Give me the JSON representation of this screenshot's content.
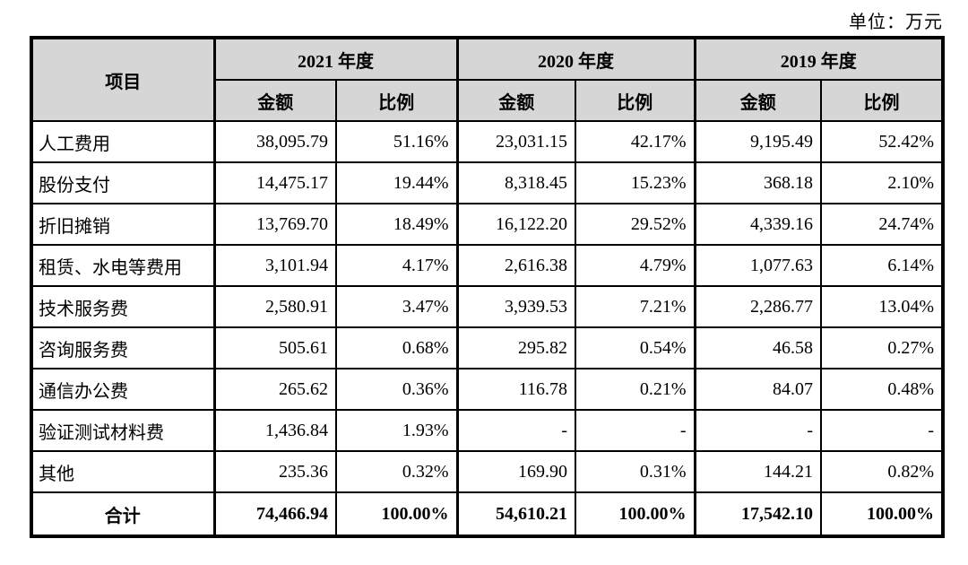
{
  "unit_label": "单位：万元",
  "table": {
    "item_header": "项目",
    "year_groups": [
      {
        "label": "2021 年度",
        "amount_label": "金额",
        "ratio_label": "比例"
      },
      {
        "label": "2020 年度",
        "amount_label": "金额",
        "ratio_label": "比例"
      },
      {
        "label": "2019 年度",
        "amount_label": "金额",
        "ratio_label": "比例"
      }
    ],
    "rows": [
      {
        "item": "人工费用",
        "values": [
          "38,095.79",
          "51.16%",
          "23,031.15",
          "42.17%",
          "9,195.49",
          "52.42%"
        ]
      },
      {
        "item": "股份支付",
        "values": [
          "14,475.17",
          "19.44%",
          "8,318.45",
          "15.23%",
          "368.18",
          "2.10%"
        ]
      },
      {
        "item": "折旧摊销",
        "values": [
          "13,769.70",
          "18.49%",
          "16,122.20",
          "29.52%",
          "4,339.16",
          "24.74%"
        ]
      },
      {
        "item": "租赁、水电等费用",
        "values": [
          "3,101.94",
          "4.17%",
          "2,616.38",
          "4.79%",
          "1,077.63",
          "6.14%"
        ]
      },
      {
        "item": "技术服务费",
        "values": [
          "2,580.91",
          "3.47%",
          "3,939.53",
          "7.21%",
          "2,286.77",
          "13.04%"
        ]
      },
      {
        "item": "咨询服务费",
        "values": [
          "505.61",
          "0.68%",
          "295.82",
          "0.54%",
          "46.58",
          "0.27%"
        ]
      },
      {
        "item": "通信办公费",
        "values": [
          "265.62",
          "0.36%",
          "116.78",
          "0.21%",
          "84.07",
          "0.48%"
        ]
      },
      {
        "item": "验证测试材料费",
        "values": [
          "1,436.84",
          "1.93%",
          "-",
          "-",
          "-",
          "-"
        ]
      },
      {
        "item": "其他",
        "values": [
          "235.36",
          "0.32%",
          "169.90",
          "0.31%",
          "144.21",
          "0.82%"
        ]
      }
    ],
    "total_row": {
      "item": "合计",
      "values": [
        "74,466.94",
        "100.00%",
        "54,610.21",
        "100.00%",
        "17,542.10",
        "100.00%"
      ]
    }
  },
  "colors": {
    "header_bg": "#d6d6d6",
    "border": "#000000",
    "background": "#ffffff"
  }
}
